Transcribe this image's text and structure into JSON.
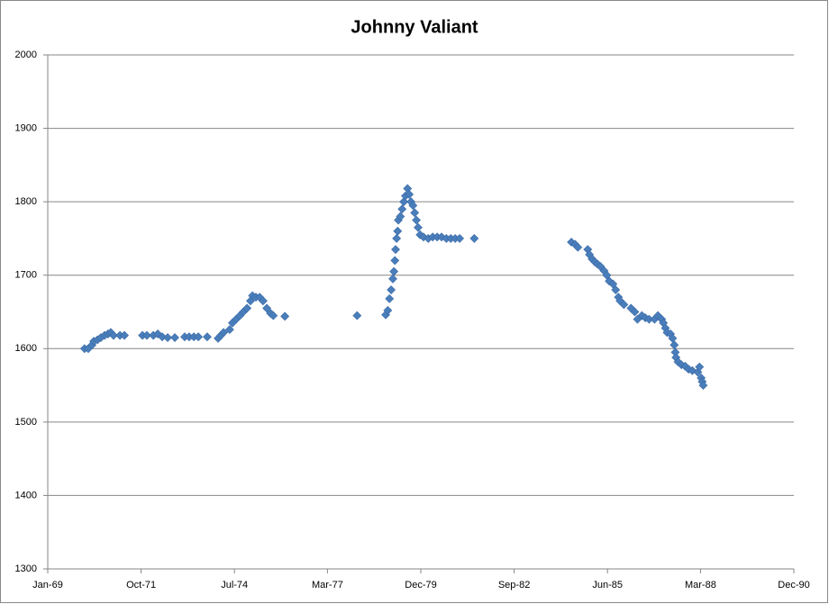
{
  "chart_data": {
    "type": "scatter",
    "title": "Johnny Valiant",
    "x": [
      1970.08,
      1970.19,
      1970.3,
      1970.35,
      1970.46,
      1970.56,
      1970.67,
      1970.77,
      1970.85,
      1970.93,
      1971.12,
      1971.25,
      1971.78,
      1971.91,
      1972.1,
      1972.23,
      1972.36,
      1972.52,
      1972.73,
      1973.02,
      1973.15,
      1973.29,
      1973.42,
      1973.68,
      1974.0,
      1974.08,
      1974.16,
      1974.34,
      1974.42,
      1974.53,
      1974.64,
      1974.74,
      1974.85,
      1974.95,
      1975.01,
      1975.11,
      1975.22,
      1975.32,
      1975.43,
      1975.54,
      1975.62,
      1975.96,
      1978.08,
      1978.92,
      1978.98,
      1979.03,
      1979.08,
      1979.13,
      1979.16,
      1979.19,
      1979.21,
      1979.24,
      1979.27,
      1979.29,
      1979.35,
      1979.4,
      1979.45,
      1979.5,
      1979.56,
      1979.61,
      1979.66,
      1979.72,
      1979.77,
      1979.82,
      1979.87,
      1979.93,
      1980.03,
      1980.17,
      1980.3,
      1980.43,
      1980.56,
      1980.7,
      1980.83,
      1980.96,
      1981.09,
      1981.52,
      1984.37,
      1984.48,
      1984.56,
      1984.85,
      1984.9,
      1984.98,
      1985.06,
      1985.14,
      1985.22,
      1985.33,
      1985.41,
      1985.48,
      1985.59,
      1985.67,
      1985.75,
      1985.8,
      1985.91,
      1986.12,
      1986.23,
      1986.31,
      1986.44,
      1986.54,
      1986.65,
      1986.81,
      1986.91,
      1987.02,
      1987.07,
      1987.13,
      1987.18,
      1987.28,
      1987.34,
      1987.39,
      1987.42,
      1987.44,
      1987.5,
      1987.6,
      1987.71,
      1987.81,
      1987.92,
      1988.08,
      1988.13,
      1988.18,
      1988.21,
      1988.24
    ],
    "values": [
      1600,
      1600,
      1605,
      1610,
      1612,
      1615,
      1618,
      1620,
      1622,
      1618,
      1618,
      1618,
      1618,
      1618,
      1618,
      1620,
      1616,
      1615,
      1615,
      1616,
      1616,
      1616,
      1616,
      1616,
      1614,
      1618,
      1622,
      1626,
      1635,
      1640,
      1645,
      1650,
      1655,
      1665,
      1672,
      1670,
      1670,
      1665,
      1655,
      1648,
      1645,
      1644,
      1645,
      1646,
      1652,
      1668,
      1680,
      1695,
      1705,
      1720,
      1735,
      1750,
      1760,
      1775,
      1780,
      1790,
      1800,
      1808,
      1818,
      1810,
      1800,
      1795,
      1785,
      1775,
      1765,
      1755,
      1752,
      1750,
      1752,
      1752,
      1752,
      1750,
      1750,
      1750,
      1750,
      1750,
      1745,
      1742,
      1738,
      1735,
      1728,
      1722,
      1718,
      1715,
      1712,
      1706,
      1700,
      1692,
      1688,
      1680,
      1670,
      1665,
      1660,
      1655,
      1650,
      1640,
      1645,
      1642,
      1640,
      1640,
      1645,
      1640,
      1635,
      1628,
      1622,
      1620,
      1614,
      1605,
      1595,
      1588,
      1582,
      1578,
      1576,
      1572,
      1570,
      1568,
      1575,
      1560,
      1555,
      1550
    ],
    "color": "#4a7ebb",
    "xlim": [
      1969,
      1990.9
    ],
    "xticks": [
      {
        "value": 1969,
        "label": "Jan-69"
      },
      {
        "value": 1971.74,
        "label": "Oct-71"
      },
      {
        "value": 1974.48,
        "label": "Jul-74"
      },
      {
        "value": 1977.21,
        "label": "Mar-77"
      },
      {
        "value": 1979.95,
        "label": "Dec-79"
      },
      {
        "value": 1982.69,
        "label": "Sep-82"
      },
      {
        "value": 1985.43,
        "label": "Jun-85"
      },
      {
        "value": 1988.16,
        "label": "Mar-88"
      },
      {
        "value": 1990.9,
        "label": "Dec-90"
      }
    ],
    "ylim": [
      1300,
      2000
    ],
    "yticks": [
      1300,
      1400,
      1500,
      1600,
      1700,
      1800,
      1900,
      2000
    ],
    "grid": true
  }
}
